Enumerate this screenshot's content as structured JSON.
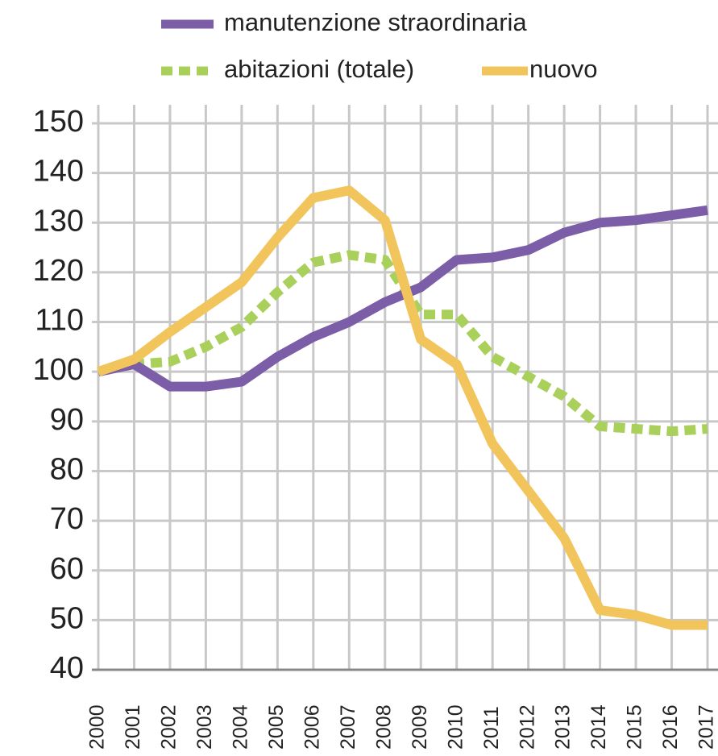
{
  "chart_data": {
    "type": "line",
    "x": [
      2000,
      2001,
      2002,
      2003,
      2004,
      2005,
      2006,
      2007,
      2008,
      2009,
      2010,
      2011,
      2012,
      2013,
      2014,
      2015,
      2016,
      2017
    ],
    "xlim": [
      2000,
      2017
    ],
    "ylim": [
      40,
      150
    ],
    "yticks": [
      40,
      50,
      60,
      70,
      80,
      90,
      100,
      110,
      120,
      130,
      140,
      150
    ],
    "grid": true,
    "legend": "top",
    "series": [
      {
        "name": "manutenzione straordinaria",
        "color": "#7b5ea7",
        "style": "solid",
        "values": [
          100,
          101.5,
          97,
          97,
          98,
          103,
          107,
          110,
          114,
          117,
          122.5,
          123,
          124.5,
          128,
          130,
          130.5,
          131.5,
          132.5
        ]
      },
      {
        "name": "abitazioni (totale)",
        "color": "#a8d05a",
        "style": "dotted",
        "values": [
          100,
          101.5,
          102,
          105,
          109,
          116,
          122,
          123.5,
          122.5,
          111.5,
          111.5,
          103,
          99,
          95,
          89,
          88.5,
          88,
          88.5
        ]
      },
      {
        "name": "nuovo",
        "color": "#f2c55c",
        "style": "solid",
        "values": [
          100,
          102.5,
          108,
          113,
          118,
          127,
          135,
          136.5,
          130.5,
          106.5,
          101.5,
          85.5,
          76,
          66.5,
          52,
          51,
          49,
          49
        ]
      }
    ]
  }
}
